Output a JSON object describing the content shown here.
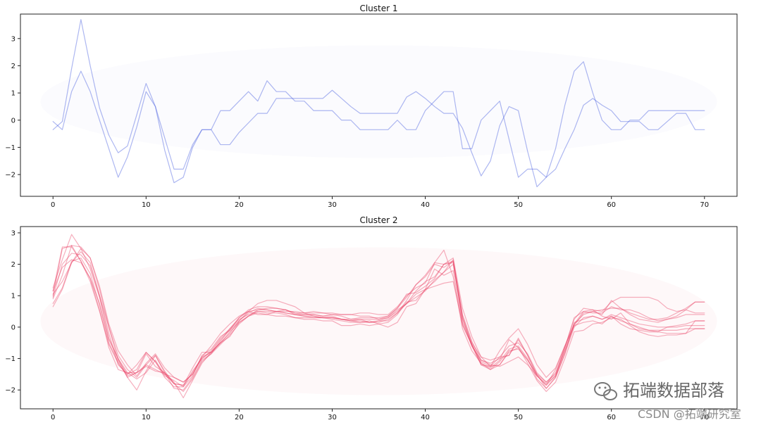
{
  "chart_data": [
    {
      "type": "line",
      "title": "Cluster 1",
      "xlabel": "",
      "ylabel": "",
      "xlim": [
        -3.5,
        73.5
      ],
      "ylim": [
        -2.8,
        3.9
      ],
      "xticks": [
        0,
        10,
        20,
        30,
        40,
        50,
        60,
        70
      ],
      "yticks": [
        3,
        2,
        1,
        0,
        -1,
        -2
      ],
      "grid": false,
      "color": "#4a5fe0",
      "series": [
        {
          "x": [
            0,
            1,
            2,
            3,
            4,
            5,
            6,
            7,
            8,
            9,
            10,
            11,
            12,
            13,
            14,
            15,
            16,
            17,
            18,
            19,
            20,
            21,
            22,
            23,
            24,
            25,
            26,
            27,
            28,
            29,
            30,
            31,
            32,
            33,
            34,
            35,
            36,
            37,
            38,
            39,
            40,
            41,
            42,
            43,
            44,
            45,
            46,
            47,
            48,
            49,
            50,
            51,
            52,
            53,
            54,
            55,
            56,
            57,
            58,
            59,
            60,
            61,
            62,
            63,
            64,
            65,
            66,
            67,
            68,
            69,
            70
          ],
          "values": [
            -0.35,
            -0.05,
            1.9,
            3.7,
            2.0,
            0.45,
            -0.55,
            -1.2,
            -0.95,
            0.2,
            1.35,
            0.5,
            -1.1,
            -2.3,
            -2.1,
            -1.0,
            -0.35,
            -0.35,
            -0.9,
            -0.9,
            -0.45,
            -0.1,
            0.25,
            0.25,
            0.8,
            0.8,
            0.8,
            0.8,
            0.8,
            0.8,
            1.1,
            0.8,
            0.5,
            0.25,
            0.25,
            0.25,
            0.25,
            0.25,
            0.85,
            1.05,
            0.8,
            0.5,
            0.25,
            0.25,
            -0.3,
            -1.2,
            -2.05,
            -1.5,
            -0.2,
            0.5,
            0.35,
            -1.15,
            -2.45,
            -2.1,
            -1.05,
            0.55,
            1.8,
            2.15,
            1.0,
            0.0,
            -0.35,
            -0.35,
            0.0,
            0.0,
            0.35,
            0.35,
            0.35,
            0.35,
            0.35,
            0.35,
            0.35
          ]
        },
        {
          "x": [
            0,
            1,
            2,
            3,
            4,
            5,
            6,
            7,
            8,
            9,
            10,
            11,
            12,
            13,
            14,
            15,
            16,
            17,
            18,
            19,
            20,
            21,
            22,
            23,
            24,
            25,
            26,
            27,
            28,
            29,
            30,
            31,
            32,
            33,
            34,
            35,
            36,
            37,
            38,
            39,
            40,
            41,
            42,
            43,
            44,
            45,
            46,
            47,
            48,
            49,
            50,
            51,
            52,
            53,
            54,
            55,
            56,
            57,
            58,
            59,
            60,
            61,
            62,
            63,
            64,
            65,
            66,
            67,
            68,
            69,
            70
          ],
          "values": [
            -0.05,
            -0.35,
            1.05,
            1.8,
            1.05,
            0.0,
            -1.05,
            -2.1,
            -1.35,
            -0.25,
            1.05,
            0.5,
            -0.65,
            -1.8,
            -1.8,
            -0.9,
            -0.35,
            -0.35,
            0.35,
            0.35,
            0.7,
            1.05,
            0.7,
            1.45,
            1.05,
            1.05,
            0.7,
            0.7,
            0.35,
            0.35,
            0.35,
            0.0,
            0.0,
            -0.35,
            -0.35,
            -0.35,
            -0.35,
            0.0,
            -0.35,
            -0.35,
            0.35,
            0.7,
            1.05,
            1.05,
            -1.05,
            -1.05,
            0.0,
            0.35,
            0.7,
            -0.7,
            -2.1,
            -1.8,
            -1.8,
            -2.1,
            -1.8,
            -1.05,
            -0.35,
            0.55,
            0.8,
            0.55,
            0.35,
            -0.05,
            -0.05,
            -0.05,
            -0.35,
            -0.35,
            -0.05,
            0.25,
            0.25,
            -0.35,
            -0.35
          ]
        }
      ]
    },
    {
      "type": "line",
      "title": "Cluster 2",
      "xlabel": "",
      "ylabel": "",
      "xlim": [
        -3.5,
        73.5
      ],
      "ylim": [
        -2.6,
        3.2
      ],
      "xticks": [
        0,
        10,
        20,
        30,
        40,
        50,
        60,
        70
      ],
      "yticks": [
        3,
        2,
        1,
        0,
        -1,
        -2
      ],
      "grid": false,
      "color": "#e8385d",
      "series": [
        {
          "values": [
            0.65,
            1.2,
            2.05,
            2.5,
            2.2,
            1.2,
            0.0,
            -1.05,
            -1.5,
            -1.35,
            -0.8,
            -1.1,
            -1.5,
            -1.8,
            -1.85,
            -1.3,
            -0.8,
            -0.8,
            -0.5,
            -0.2,
            0.2,
            0.5,
            0.55,
            0.55,
            0.5,
            0.5,
            0.5,
            0.45,
            0.35,
            0.3,
            0.3,
            0.25,
            0.2,
            0.15,
            0.2,
            0.1,
            0.0,
            0.15,
            0.65,
            0.75,
            1.2,
            1.3,
            1.4,
            1.45,
            0.1,
            -0.6,
            -1.05,
            -1.15,
            -1.0,
            -0.9,
            -0.4,
            -0.9,
            -1.55,
            -1.85,
            -1.35,
            -0.6,
            0.05,
            0.15,
            0.2,
            0.1,
            0.35,
            0.1,
            -0.05,
            -0.1,
            -0.15,
            -0.15,
            -0.2,
            -0.2,
            -0.2,
            -0.05,
            -0.05
          ]
        },
        {
          "values": [
            1.05,
            1.45,
            2.05,
            2.4,
            2.05,
            1.0,
            -0.2,
            -1.2,
            -1.5,
            -1.2,
            -0.8,
            -1.1,
            -1.6,
            -1.9,
            -1.9,
            -1.4,
            -1.0,
            -0.75,
            -0.35,
            -0.05,
            0.3,
            0.55,
            0.65,
            0.65,
            0.6,
            0.55,
            0.45,
            0.4,
            0.4,
            0.35,
            0.35,
            0.25,
            0.2,
            0.25,
            0.15,
            0.15,
            0.25,
            0.45,
            0.75,
            0.95,
            1.15,
            1.5,
            1.75,
            2.15,
            0.4,
            -0.45,
            -1.05,
            -1.2,
            -1.25,
            -1.1,
            -0.95,
            -1.2,
            -1.55,
            -1.8,
            -1.55,
            -0.65,
            0.3,
            0.5,
            0.55,
            0.35,
            0.25,
            0.45,
            0.1,
            0.0,
            -0.1,
            -0.15,
            0.0,
            0.05,
            0.1,
            0.2,
            0.2
          ]
        },
        {
          "values": [
            0.9,
            1.65,
            2.6,
            2.55,
            2.2,
            1.3,
            0.1,
            -0.75,
            -1.2,
            -1.55,
            -1.15,
            -0.85,
            -1.3,
            -1.6,
            -1.75,
            -1.5,
            -0.95,
            -0.6,
            -0.2,
            0.1,
            0.35,
            0.5,
            0.4,
            0.4,
            0.5,
            0.45,
            0.4,
            0.4,
            0.4,
            0.35,
            0.4,
            0.35,
            0.25,
            0.3,
            0.3,
            0.3,
            0.35,
            0.6,
            1.05,
            1.1,
            1.3,
            1.55,
            2.0,
            2.2,
            0.6,
            -0.3,
            -0.95,
            -1.25,
            -0.75,
            -0.35,
            -0.05,
            -0.55,
            -1.2,
            -1.6,
            -1.3,
            -0.6,
            0.1,
            0.5,
            0.45,
            0.45,
            0.65,
            0.55,
            0.55,
            0.45,
            0.3,
            0.2,
            0.25,
            0.3,
            0.4,
            0.4,
            0.4
          ]
        },
        {
          "values": [
            1.25,
            2.15,
            2.95,
            2.5,
            1.85,
            0.95,
            -0.35,
            -1.0,
            -1.6,
            -1.45,
            -1.25,
            -1.4,
            -1.45,
            -1.95,
            -2.0,
            -1.6,
            -1.05,
            -0.85,
            -0.45,
            -0.05,
            0.25,
            0.4,
            0.5,
            0.45,
            0.45,
            0.4,
            0.3,
            0.25,
            0.25,
            0.2,
            0.2,
            0.05,
            0.05,
            0.1,
            0.05,
            0.1,
            0.15,
            0.4,
            0.8,
            0.85,
            1.2,
            1.85,
            1.65,
            1.8,
            0.05,
            -0.55,
            -1.1,
            -1.25,
            -1.2,
            -0.75,
            -0.7,
            -1.05,
            -1.5,
            -1.95,
            -1.6,
            -0.85,
            0.15,
            0.25,
            0.35,
            0.25,
            0.35,
            0.2,
            0.1,
            -0.05,
            -0.1,
            -0.1,
            -0.1,
            -0.1,
            -0.05,
            -0.05,
            -0.05
          ]
        },
        {
          "values": [
            0.75,
            1.25,
            2.1,
            2.2,
            1.7,
            0.7,
            -0.5,
            -1.1,
            -1.6,
            -2.0,
            -1.4,
            -0.9,
            -1.4,
            -1.8,
            -2.05,
            -1.65,
            -1.1,
            -0.85,
            -0.55,
            -0.25,
            0.1,
            0.35,
            0.45,
            0.4,
            0.35,
            0.35,
            0.3,
            0.3,
            0.3,
            0.3,
            0.25,
            0.2,
            0.15,
            0.15,
            0.15,
            0.2,
            0.2,
            0.45,
            0.85,
            1.35,
            1.65,
            2.05,
            2.45,
            1.6,
            -0.05,
            -0.75,
            -1.15,
            -1.3,
            -1.05,
            -0.4,
            -0.65,
            -1.15,
            -1.7,
            -2.05,
            -1.75,
            -1.0,
            -0.15,
            -0.1,
            0.1,
            0.15,
            0.3,
            0.25,
            0.05,
            -0.15,
            -0.25,
            -0.3,
            -0.25,
            -0.25,
            -0.2,
            0.2,
            0.2
          ]
        },
        {
          "values": [
            1.15,
            2.55,
            2.55,
            2.1,
            1.55,
            0.55,
            -0.65,
            -1.35,
            -1.45,
            -1.45,
            -1.2,
            -1.35,
            -1.5,
            -1.6,
            -1.75,
            -1.5,
            -1.0,
            -0.8,
            -0.5,
            -0.3,
            0.15,
            0.35,
            0.55,
            0.6,
            0.6,
            0.55,
            0.45,
            0.45,
            0.45,
            0.45,
            0.4,
            0.4,
            0.4,
            0.45,
            0.45,
            0.4,
            0.4,
            0.65,
            1.0,
            1.25,
            1.4,
            2.05,
            2.0,
            2.05,
            0.25,
            -0.55,
            -1.2,
            -1.25,
            -0.95,
            -0.6,
            -0.5,
            -0.85,
            -1.45,
            -1.75,
            -1.5,
            -0.75,
            0.05,
            0.45,
            0.5,
            0.4,
            0.85,
            0.6,
            0.45,
            0.35,
            0.25,
            0.25,
            0.3,
            0.45,
            0.6,
            0.8,
            0.8
          ]
        },
        {
          "values": [
            1.15,
            1.9,
            2.15,
            2.05,
            1.55,
            0.75,
            -0.4,
            -1.0,
            -1.45,
            -1.65,
            -1.45,
            -1.05,
            -1.55,
            -1.7,
            -1.9,
            -1.55,
            -0.9,
            -0.7,
            -0.3,
            -0.1,
            0.2,
            0.45,
            0.6,
            0.55,
            0.5,
            0.55,
            0.4,
            0.35,
            0.35,
            0.3,
            0.3,
            0.25,
            0.2,
            0.2,
            0.15,
            0.2,
            0.3,
            0.5,
            0.75,
            1.05,
            1.2,
            1.45,
            1.75,
            2.0,
            0.3,
            -0.6,
            -1.2,
            -1.35,
            -1.1,
            -0.7,
            -0.6,
            -1.0,
            -1.65,
            -1.95,
            -1.6,
            -0.85,
            0.0,
            0.3,
            0.35,
            0.25,
            0.4,
            0.3,
            0.2,
            0.1,
            0.05,
            0.0,
            0.0,
            0.0,
            0.05,
            0.05,
            0.05
          ]
        },
        {
          "values": [
            1.0,
            2.5,
            2.6,
            2.1,
            1.45,
            0.5,
            -0.55,
            -1.15,
            -1.55,
            -1.45,
            -0.85,
            -1.25,
            -1.45,
            -1.8,
            -1.85,
            -1.45,
            -0.95,
            -0.8,
            -0.4,
            -0.1,
            0.3,
            0.5,
            0.75,
            0.85,
            0.85,
            0.75,
            0.65,
            0.45,
            0.5,
            0.45,
            0.45,
            0.4,
            0.4,
            0.35,
            0.35,
            0.25,
            0.35,
            0.6,
            0.95,
            1.35,
            1.6,
            2.0,
            1.9,
            2.1,
            0.35,
            -0.5,
            -0.95,
            -1.05,
            -0.95,
            -0.9,
            -0.35,
            -0.9,
            -1.5,
            -1.75,
            -1.45,
            -0.65,
            0.25,
            0.6,
            0.55,
            0.5,
            0.8,
            0.95,
            0.95,
            0.95,
            0.95,
            0.85,
            0.6,
            0.5,
            0.55,
            0.8,
            0.8
          ]
        },
        {
          "values": [
            0.95,
            2.0,
            2.35,
            2.3,
            1.95,
            1.0,
            0.0,
            -0.9,
            -1.35,
            -1.6,
            -1.2,
            -0.9,
            -1.45,
            -1.75,
            -2.25,
            -1.7,
            -1.15,
            -0.8,
            -0.5,
            -0.15,
            0.15,
            0.35,
            0.5,
            0.5,
            0.5,
            0.45,
            0.4,
            0.35,
            0.3,
            0.3,
            0.3,
            0.25,
            0.25,
            0.25,
            0.25,
            0.25,
            0.3,
            0.55,
            0.75,
            1.15,
            1.45,
            1.6,
            2.0,
            2.1,
            0.15,
            -0.55,
            -1.15,
            -1.35,
            -1.2,
            -0.8,
            -0.65,
            -1.05,
            -1.55,
            -1.85,
            -1.55,
            -0.75,
            0.1,
            0.4,
            0.5,
            0.55,
            0.6,
            0.6,
            0.4,
            0.25,
            0.2,
            0.15,
            0.25,
            0.35,
            0.55,
            0.45,
            0.45
          ]
        }
      ]
    }
  ],
  "watermark": {
    "main": "拓端数据部落",
    "sub": "CSDN @拓端研究室"
  }
}
